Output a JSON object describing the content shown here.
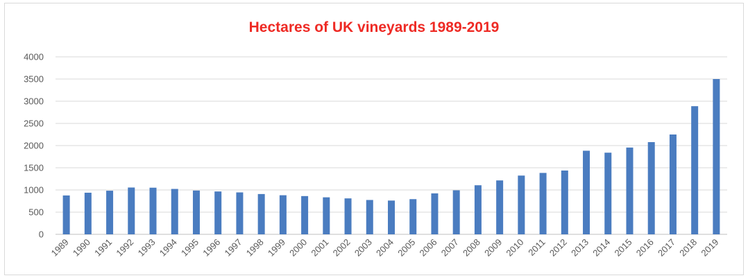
{
  "chart_data": {
    "type": "bar",
    "title": "Hectares of UK vineyards 1989-2019",
    "xlabel": "",
    "ylabel": "",
    "ylim": [
      0,
      4000
    ],
    "yticks": [
      "0",
      "500",
      "1000",
      "1500",
      "2000",
      "2500",
      "3000",
      "3500",
      "4000"
    ],
    "grid": true,
    "legend": "none",
    "bar_color": "#4a7cc0",
    "categories": [
      "1989",
      "1990",
      "1991",
      "1992",
      "1993",
      "1994",
      "1995",
      "1996",
      "1997",
      "1998",
      "1999",
      "2000",
      "2001",
      "2002",
      "2003",
      "2004",
      "2005",
      "2006",
      "2007",
      "2008",
      "2009",
      "2010",
      "2011",
      "2012",
      "2013",
      "2014",
      "2015",
      "2016",
      "2017",
      "2018",
      "2019"
    ],
    "values": [
      876,
      938,
      983,
      1055,
      1051,
      1023,
      987,
      966,
      945,
      908,
      881,
      862,
      834,
      810,
      774,
      761,
      793,
      923,
      992,
      1106,
      1215,
      1324,
      1384,
      1438,
      1884,
      1840,
      1956,
      2078,
      2250,
      2888,
      3500
    ]
  }
}
